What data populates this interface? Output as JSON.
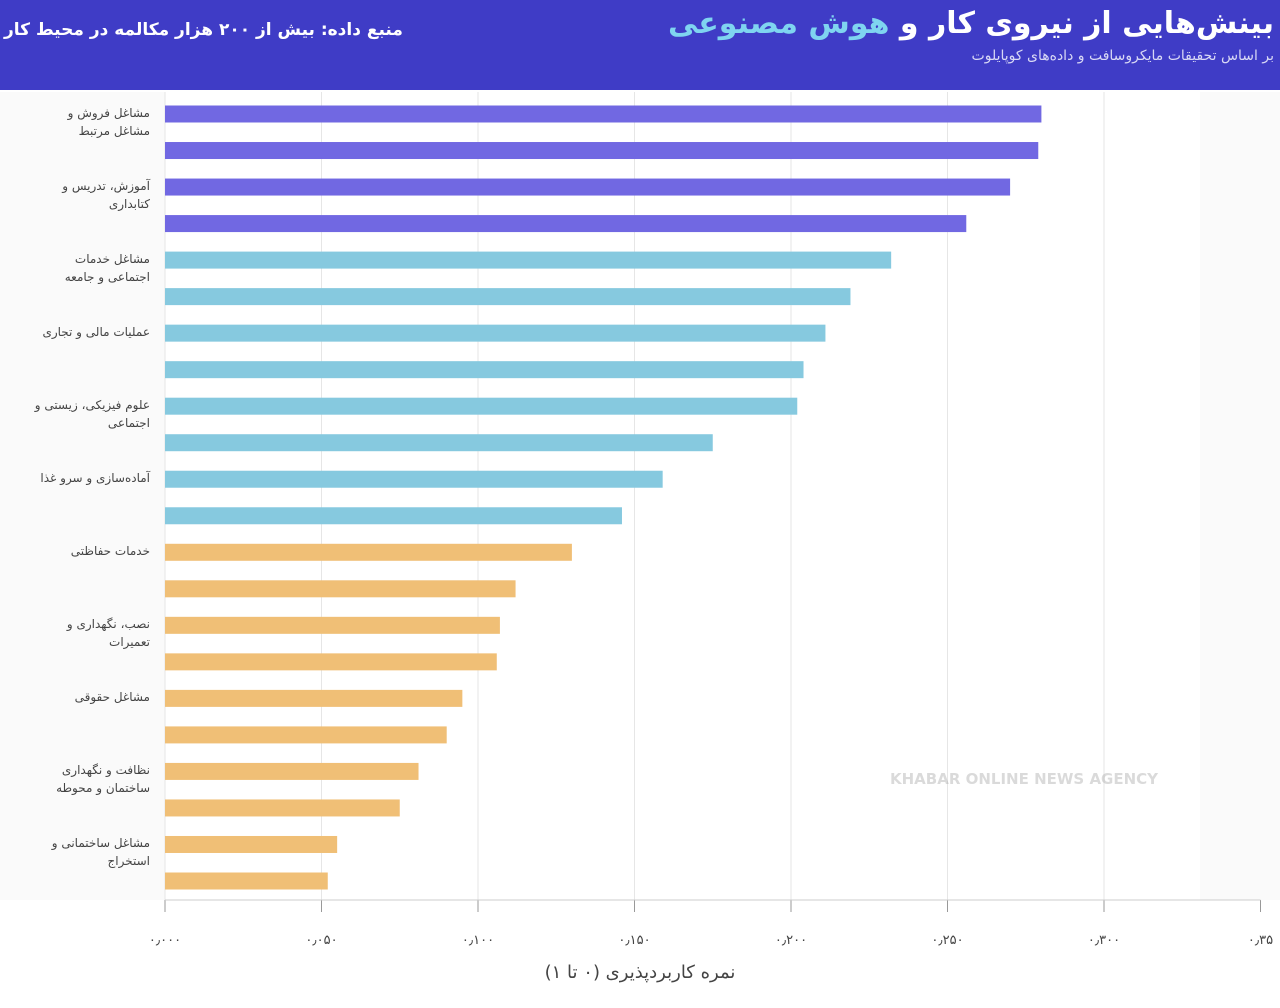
{
  "chart_data": {
    "type": "hbar",
    "title": "بینش‌هایی از نیروی کار و",
    "title_highlight": "هوش مصنوعی",
    "subtitle": "بر اساس تحقیقات مایکروسافت و داده‌های کوپایلوت",
    "source": "منبع داده: بیش از ۲۰۰ هزار مکالمه در محیط کار",
    "x_label": "نمره کاربردپذیری (۰ تا ۱)",
    "watermark": "KHABAR ONLINE NEWS AGENCY",
    "categories": [
      "مشاغل فروش و مشاغل مرتبط",
      null,
      "آموزش، تدریس و کتابداری",
      null,
      "مشاغل خدمات اجتماعی و جامعه",
      null,
      "عملیات مالی و تجاری",
      null,
      "علوم فیزیکی، زیستی و اجتماعی",
      null,
      "آماده‌سازی و سرو غذا",
      null,
      "خدمات حفاظتی",
      null,
      "نصب، نگهداری و تعمیرات",
      null,
      "مشاغل حقوقی",
      null,
      "نظافت و نگهداری ساختمان و محوطه",
      null,
      "مشاغل ساختمانی و استخراج",
      null
    ],
    "values": [
      0.28,
      0.279,
      0.27,
      0.256,
      0.232,
      0.219,
      0.211,
      0.204,
      0.202,
      0.175,
      0.159,
      0.146,
      0.13,
      0.112,
      0.107,
      0.106,
      0.095,
      0.09,
      0.081,
      0.075,
      0.055,
      0.052
    ],
    "colors": [
      "#7168e2",
      "#7168e2",
      "#7168e2",
      "#7168e2",
      "#86c9df",
      "#86c9df",
      "#86c9df",
      "#86c9df",
      "#86c9df",
      "#86c9df",
      "#86c9df",
      "#86c9df",
      "#f0bf76",
      "#f0bf76",
      "#f0bf76",
      "#f0bf76",
      "#f0bf76",
      "#f0bf76",
      "#f0bf76",
      "#f0bf76",
      "#f0bf76",
      "#f0bf76"
    ],
    "xlim": [
      0,
      0.35
    ],
    "xticks": [
      {
        "value": 0,
        "label": "۰٫۰۰۰"
      },
      {
        "value": 0.05,
        "label": "۰٫۰۵۰"
      },
      {
        "value": 0.1,
        "label": "۰٫۱۰۰"
      },
      {
        "value": 0.15,
        "label": "۰٫۱۵۰"
      },
      {
        "value": 0.2,
        "label": "۰٫۲۰۰"
      },
      {
        "value": 0.25,
        "label": "۰٫۲۵۰"
      },
      {
        "value": 0.3,
        "label": "۰٫۳۰۰"
      },
      {
        "value": 0.35,
        "label": "۰٫۳۵"
      }
    ],
    "grid": true
  }
}
